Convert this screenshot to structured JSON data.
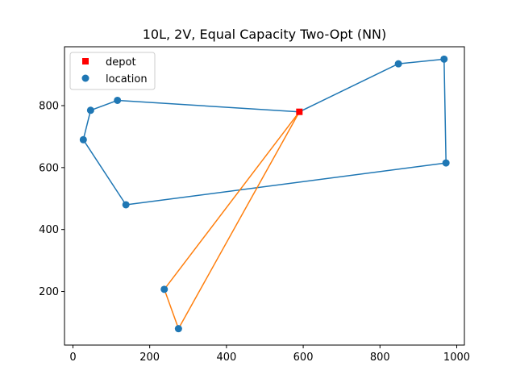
{
  "chart_data": {
    "type": "scatter",
    "title": "10L, 2V, Equal Capacity Two-Opt (NN)",
    "xlabel": "",
    "ylabel": "",
    "xlim": [
      -22,
      1020
    ],
    "ylim": [
      27,
      990
    ],
    "xticks": [
      0,
      200,
      400,
      600,
      800,
      1000
    ],
    "yticks": [
      200,
      400,
      600,
      800
    ],
    "grid": false,
    "legend_position": "top-left",
    "legend": [
      {
        "label": "depot",
        "marker": "square",
        "color": "#ff0000"
      },
      {
        "label": "location",
        "marker": "circle",
        "color": "#1f77b4"
      }
    ],
    "depot": {
      "x": 590,
      "y": 780
    },
    "locations": [
      {
        "x": 848,
        "y": 935
      },
      {
        "x": 967,
        "y": 950
      },
      {
        "x": 972,
        "y": 615
      },
      {
        "x": 138,
        "y": 480
      },
      {
        "x": 27,
        "y": 690
      },
      {
        "x": 46,
        "y": 785
      },
      {
        "x": 116,
        "y": 817
      },
      {
        "x": 238,
        "y": 207
      },
      {
        "x": 275,
        "y": 80
      }
    ],
    "routes": [
      {
        "color": "#1f77b4",
        "points": [
          [
            590,
            780
          ],
          [
            848,
            935
          ],
          [
            967,
            950
          ],
          [
            972,
            615
          ],
          [
            138,
            480
          ],
          [
            27,
            690
          ],
          [
            46,
            785
          ],
          [
            116,
            817
          ],
          [
            590,
            780
          ]
        ]
      },
      {
        "color": "#ff7f0e",
        "points": [
          [
            590,
            780
          ],
          [
            238,
            207
          ],
          [
            275,
            80
          ],
          [
            590,
            780
          ]
        ]
      }
    ]
  }
}
